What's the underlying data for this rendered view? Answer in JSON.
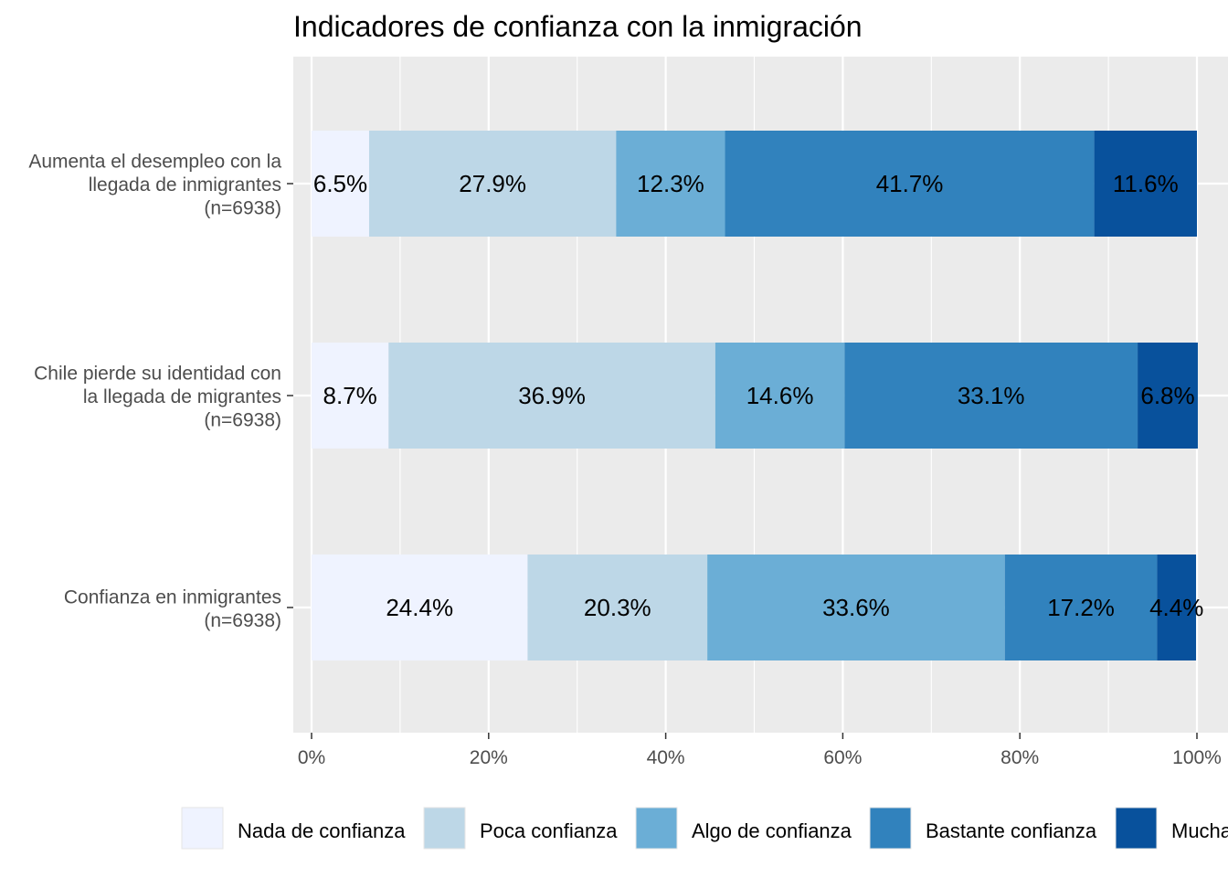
{
  "chart_data": {
    "type": "bar",
    "orientation": "horizontal",
    "stacked": true,
    "title": "Indicadores de confianza con la inmigración",
    "categories": [
      [
        "Aumenta el desempleo con la",
        "llegada de inmigrantes",
        "(n=6938)"
      ],
      [
        "Chile pierde su identidad con",
        "la llegada de migrantes",
        "(n=6938)"
      ],
      [
        "Confianza en inmigrantes",
        "(n=6938)"
      ]
    ],
    "series": [
      {
        "name": "Nada de confianza",
        "color": "#EFF3FF",
        "values": [
          6.5,
          8.7,
          24.4
        ],
        "labels": [
          "6.5%",
          "8.7%",
          "24.4%"
        ]
      },
      {
        "name": "Poca confianza",
        "color": "#BDD7E7",
        "values": [
          27.9,
          36.9,
          20.3
        ],
        "labels": [
          "27.9%",
          "36.9%",
          "20.3%"
        ]
      },
      {
        "name": "Algo de confianza",
        "color": "#6BAED6",
        "values": [
          12.3,
          14.6,
          33.6
        ],
        "labels": [
          "12.3%",
          "14.6%",
          "33.6%"
        ]
      },
      {
        "name": "Bastante confianza",
        "color": "#3182BD",
        "values": [
          41.7,
          33.1,
          17.2
        ],
        "labels": [
          "41.7%",
          "33.1%",
          "17.2%"
        ]
      },
      {
        "name": "Mucha",
        "color": "#08519C",
        "values": [
          11.6,
          6.8,
          4.4
        ],
        "labels": [
          "11.6%",
          "6.8%",
          "4.4%"
        ]
      }
    ],
    "xlim": [
      0,
      100
    ],
    "xticks": [
      0,
      20,
      40,
      60,
      80,
      100
    ],
    "xtick_labels": [
      "0%",
      "20%",
      "40%",
      "60%",
      "80%",
      "100%"
    ],
    "grid": true,
    "panel_background": "#EBEBEB",
    "legend_position": "bottom"
  }
}
